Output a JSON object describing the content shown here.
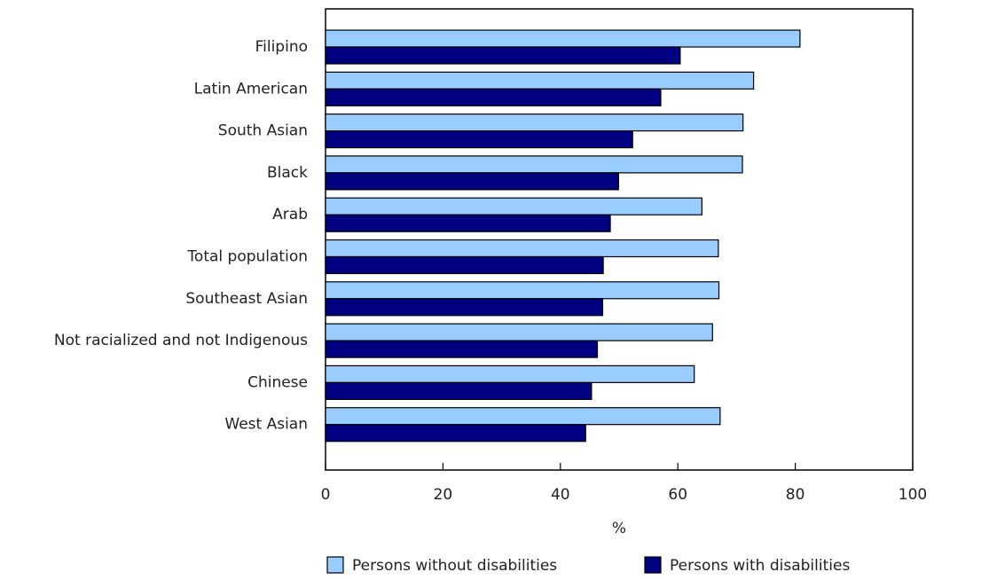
{
  "chart_data": {
    "type": "bar",
    "orientation": "horizontal",
    "title": "",
    "xlabel": "%",
    "ylabel": "",
    "xlim": [
      0,
      100
    ],
    "xticks": [
      0,
      20,
      40,
      60,
      80,
      100
    ],
    "grid": false,
    "legend_position": "bottom",
    "categories": [
      "Filipino",
      "Latin American",
      "South Asian",
      "Black",
      "Arab",
      "Total population",
      "Southeast Asian",
      "Not racialized and not Indigenous",
      "Chinese",
      "West Asian"
    ],
    "series": [
      {
        "name": "Persons without disabilities",
        "color": "#99ccff",
        "values": [
          80.8,
          72.9,
          71.1,
          71.0,
          64.1,
          66.9,
          67.0,
          65.9,
          62.8,
          67.2
        ]
      },
      {
        "name": "Persons with disabilities",
        "color": "#000080",
        "values": [
          60.4,
          57.1,
          52.3,
          49.9,
          48.5,
          47.3,
          47.2,
          46.3,
          45.3,
          44.3
        ]
      }
    ]
  }
}
